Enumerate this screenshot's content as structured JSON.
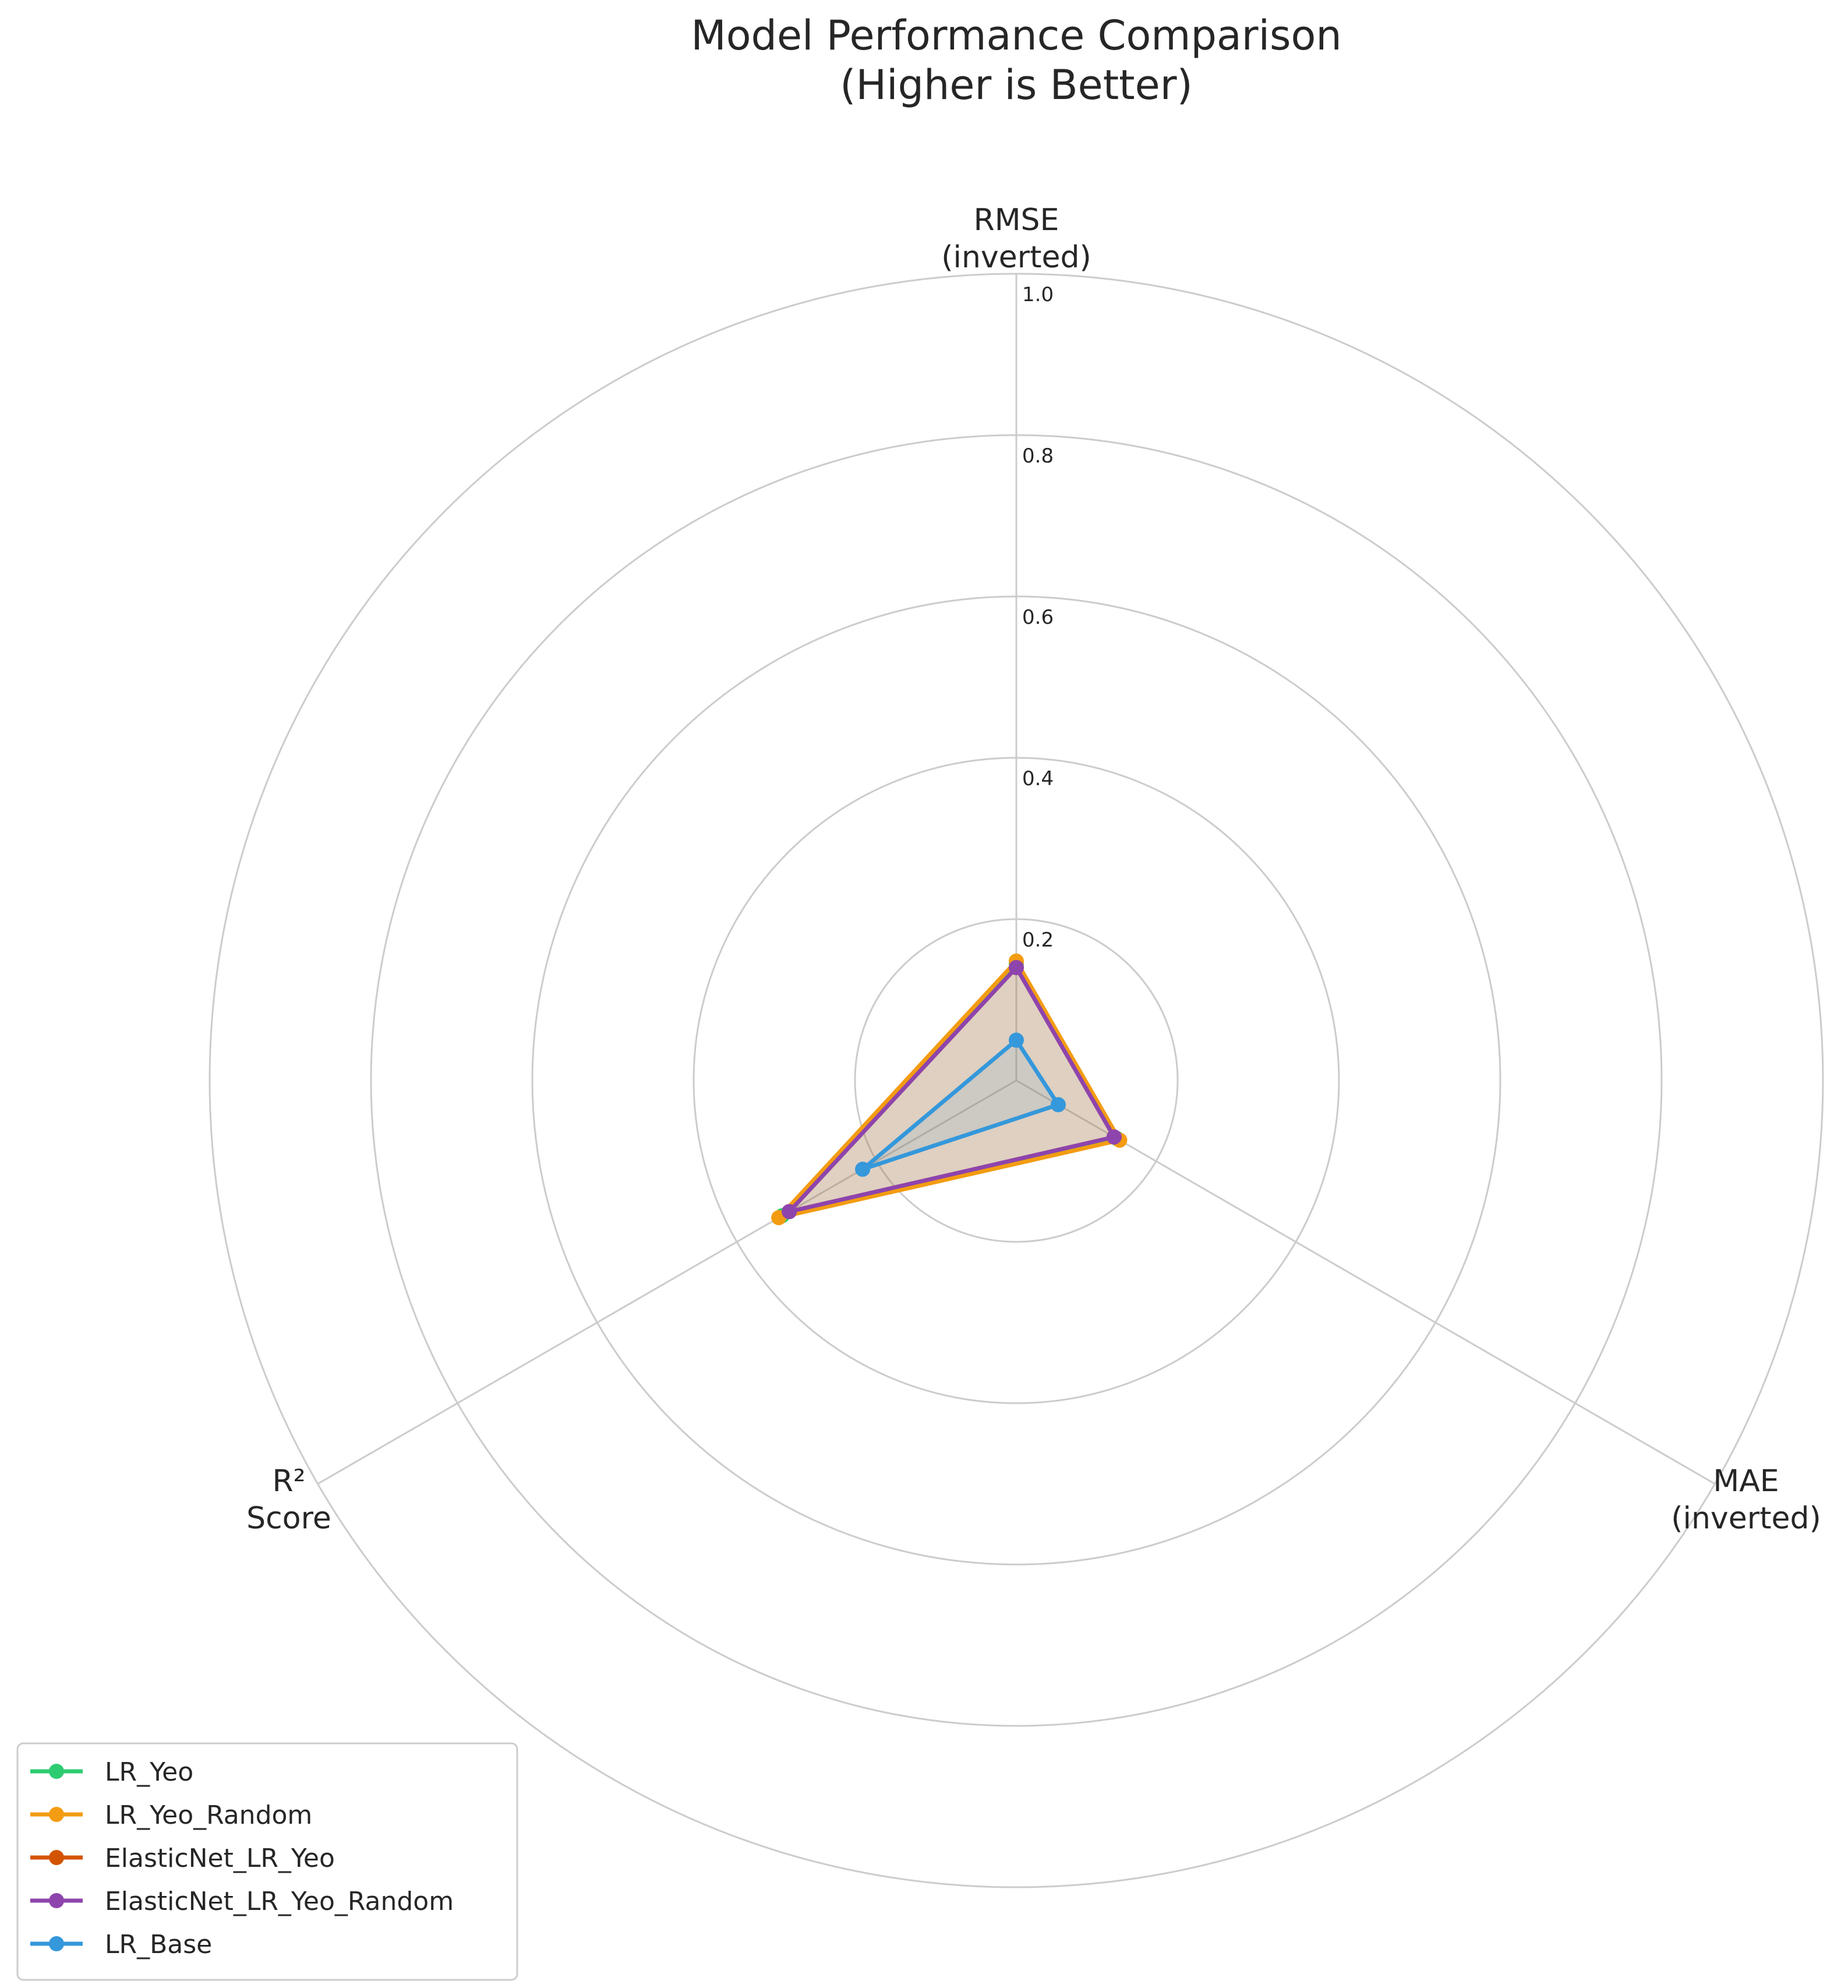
{
  "chart_data": {
    "type": "radar",
    "title": [
      "Model Performance Comparison",
      "(Higher is Better)"
    ],
    "axes": [
      {
        "label": [
          "RMSE",
          "(inverted)"
        ]
      },
      {
        "label": [
          "MAE",
          "(inverted)"
        ]
      },
      {
        "label": [
          "R²",
          "Score"
        ]
      }
    ],
    "rlim": [
      0,
      1.0
    ],
    "rticks": [
      "0.2",
      "0.4",
      "0.6",
      "0.8",
      "1.0"
    ],
    "rtick_values": [
      0.2,
      0.4,
      0.6,
      0.8,
      1.0
    ],
    "grid": true,
    "legend_placement": "lower-left",
    "series": [
      {
        "name": "LR_Yeo",
        "color": "#2ecc71",
        "values": [
          0.145,
          0.145,
          0.335
        ]
      },
      {
        "name": "LR_Yeo_Random",
        "color": "#f39c12",
        "values": [
          0.148,
          0.148,
          0.34
        ]
      },
      {
        "name": "ElasticNet_LR_Yeo",
        "color": "#d35400",
        "values": [
          0.14,
          0.14,
          0.325
        ]
      },
      {
        "name": "ElasticNet_LR_Yeo_Random",
        "color": "#8e44ad",
        "values": [
          0.14,
          0.14,
          0.325
        ]
      },
      {
        "name": "LR_Base",
        "color": "#3498db",
        "values": [
          0.05,
          0.06,
          0.22
        ]
      }
    ]
  }
}
